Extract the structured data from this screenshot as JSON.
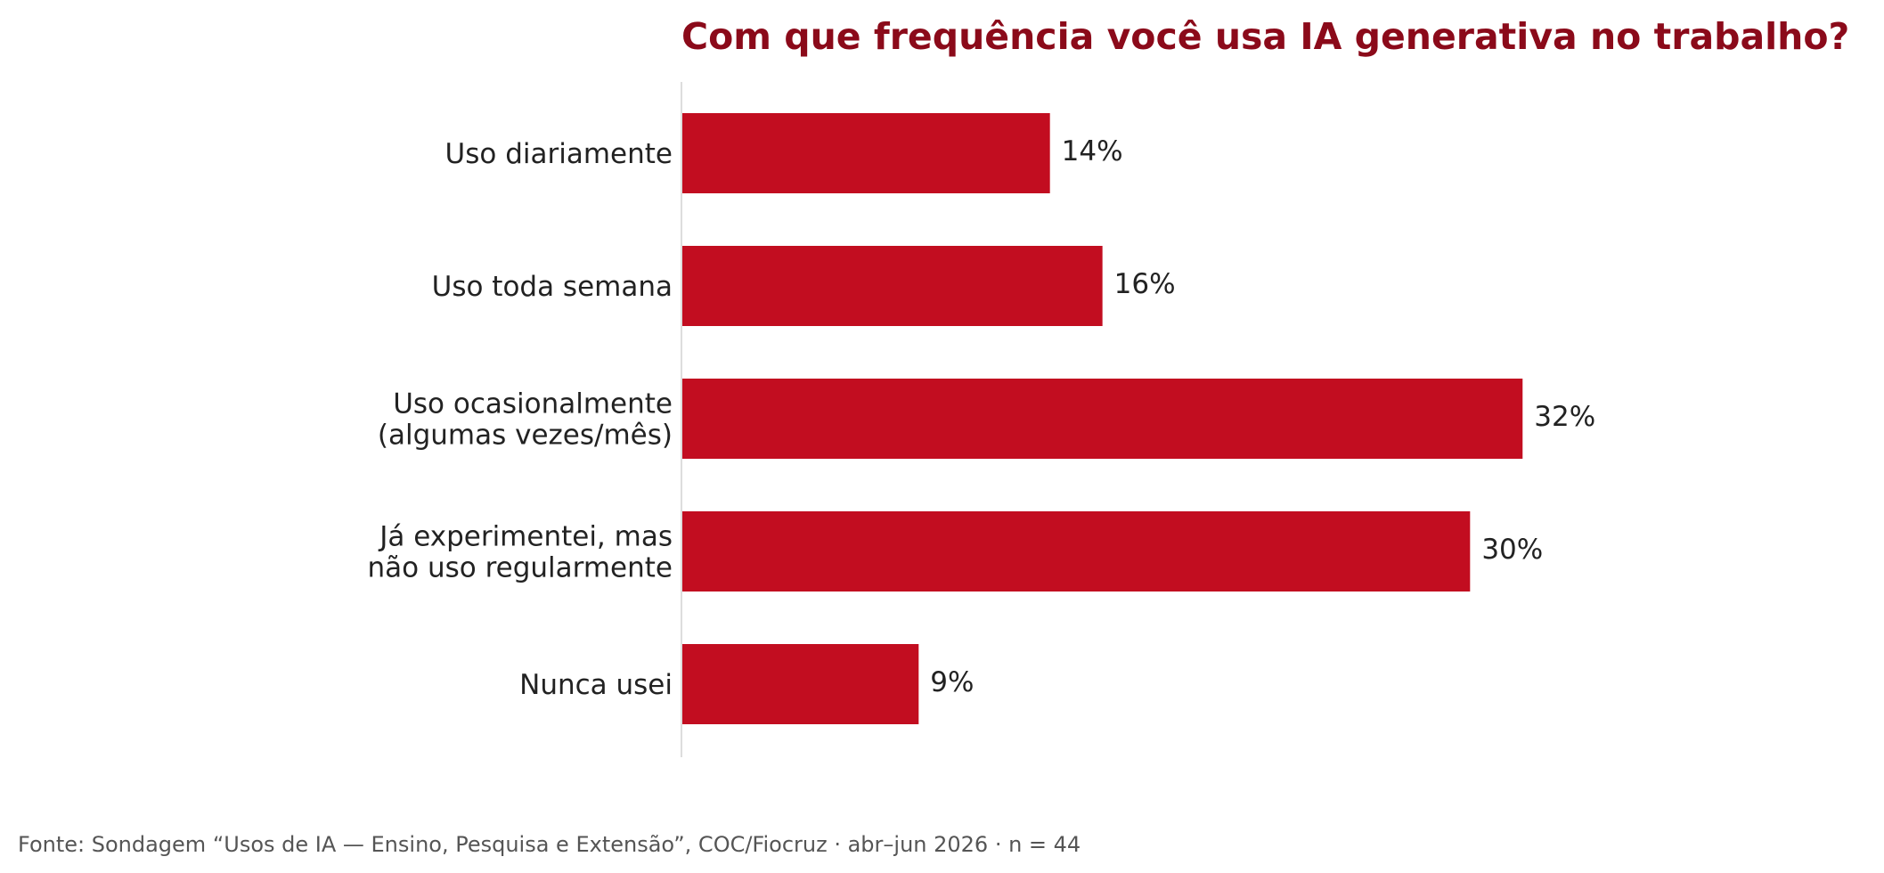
{
  "chart_data": {
    "type": "bar",
    "orientation": "horizontal",
    "title": "Com que frequência você usa IA generativa no trabalho?",
    "categories": [
      [
        "Uso diariamente"
      ],
      [
        "Uso toda semana"
      ],
      [
        "Uso ocasionalmente",
        "(algumas vezes/mês)"
      ],
      [
        "Já experimentei, mas",
        "não uso regularmente"
      ],
      [
        "Nunca usei"
      ]
    ],
    "values": [
      14,
      16,
      32,
      30,
      9
    ],
    "value_labels": [
      "14%",
      "16%",
      "32%",
      "30%",
      "9%"
    ],
    "unit": "%",
    "xlim": [
      0,
      44
    ],
    "grid": false,
    "legend": "none",
    "bar_color": "#c20d20",
    "title_color": "#8b0a1a",
    "source": "Fonte: Sondagem “Usos de IA — Ensino, Pesquisa e Extensão”, COC/Fiocruz · abr–jun 2026 · n = 44"
  }
}
